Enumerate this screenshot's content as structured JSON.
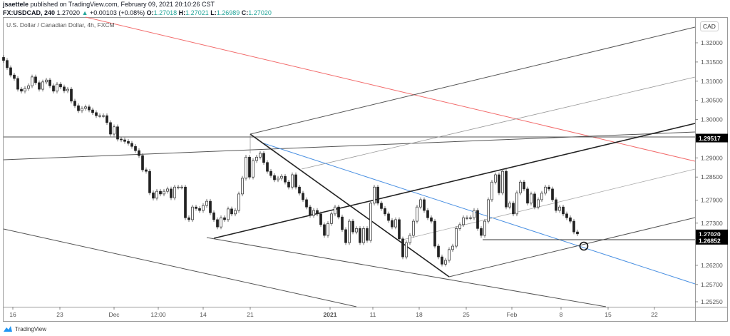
{
  "header": {
    "author": "jsaettele",
    "published": "published on TradingView.com, February 09, 2021 20:10:26 CST",
    "symbol": "FX:USDCAD, 240",
    "last": "1.27020",
    "change": "+0.00103 (+0.08%)",
    "o_label": "O:",
    "o": "1.27018",
    "h_label": "H:",
    "h": "1.27021",
    "l_label": "L:",
    "l": "1.26989",
    "c_label": "C:",
    "c": "1.27020"
  },
  "subtitle": "U.S. Dollar / Canadian Dollar, 4h, FXCM",
  "currency_badge": "CAD",
  "footer": {
    "brand": "TradingView"
  },
  "colors": {
    "accent_green": "#26a69a",
    "red_line": "#f26b6b",
    "blue_line": "#4a90e2",
    "candle_down": "#222222",
    "candle_up": "#ffffff"
  },
  "chart_data": {
    "type": "candlestick",
    "symbol": "USDCAD",
    "interval": "4h",
    "ylim": [
      1.2505,
      1.3265
    ],
    "grid": false,
    "price_ticks": [
      "1.32000",
      "1.31500",
      "1.31000",
      "1.30500",
      "1.30000",
      "1.29000",
      "1.28500",
      "1.27900",
      "1.27300",
      "1.26200",
      "1.25700",
      "1.25250"
    ],
    "price_labels": [
      {
        "value": "1.29517",
        "type": "horizontal-line"
      },
      {
        "value": "1.27020",
        "type": "last-price"
      },
      {
        "value": "1.26852",
        "type": "horizontal-line"
      }
    ],
    "date_ticks": [
      "16",
      "23",
      "Dec",
      "12:00",
      "14",
      "21",
      "2021",
      "11",
      "18",
      "25",
      "Feb",
      "8",
      "15",
      "22"
    ],
    "closes": [
      1.3154,
      1.3135,
      1.3116,
      1.3107,
      1.3079,
      1.3074,
      1.3081,
      1.3088,
      1.3111,
      1.3096,
      1.3079,
      1.3098,
      1.3103,
      1.3088,
      1.3074,
      1.3092,
      1.3085,
      1.3075,
      1.3079,
      1.3048,
      1.3036,
      1.3023,
      1.3029,
      1.3033,
      1.3025,
      1.3018,
      1.301,
      1.301,
      1.301,
      1.2992,
      1.2962,
      1.2981,
      1.2949,
      1.2947,
      1.2943,
      1.2938,
      1.293,
      1.2919,
      1.2906,
      1.2869,
      1.2865,
      1.2809,
      1.2795,
      1.2813,
      1.2806,
      1.2813,
      1.2819,
      1.2796,
      1.2824,
      1.2824,
      1.2824,
      1.2744,
      1.2739,
      1.2772,
      1.2768,
      1.2763,
      1.2776,
      1.2787,
      1.2757,
      1.2739,
      1.272,
      1.2744,
      1.2739,
      1.2767,
      1.2754,
      1.2763,
      1.2806,
      1.2847,
      1.2902,
      1.285,
      1.2893,
      1.2902,
      1.2912,
      1.2888,
      1.2865,
      1.2854,
      1.2843,
      1.2847,
      1.2852,
      1.2837,
      1.2824,
      1.2856,
      1.2824,
      1.2808,
      1.2791,
      1.2772,
      1.275,
      1.2763,
      1.2754,
      1.2726,
      1.2698,
      1.2729,
      1.2754,
      1.2772,
      1.2746,
      1.2713,
      1.2679,
      1.2735,
      1.2707,
      1.2716,
      1.2679,
      1.2716,
      1.2685,
      1.2782,
      1.2824,
      1.2782,
      1.2768,
      1.2754,
      1.2737,
      1.272,
      1.2739,
      1.2689,
      1.2642,
      1.2679,
      1.2698,
      1.2735,
      1.2772,
      1.2791,
      1.2763,
      1.2744,
      1.2735,
      1.267,
      1.2642,
      1.2623,
      1.2633,
      1.2661,
      1.267,
      1.2716,
      1.2726,
      1.2744,
      1.2744,
      1.2744,
      1.2763,
      1.2716,
      1.2698,
      1.2735,
      1.2791,
      1.2837,
      1.2856,
      1.2809,
      1.2865,
      1.2772,
      1.2782,
      1.2754,
      1.2809,
      1.2837,
      1.2819,
      1.2782,
      1.2806,
      1.2772,
      1.2791,
      1.2808,
      1.2824,
      1.2819,
      1.2791,
      1.2763,
      1.2772,
      1.2754,
      1.2744,
      1.2735,
      1.2707,
      1.2702
    ]
  }
}
